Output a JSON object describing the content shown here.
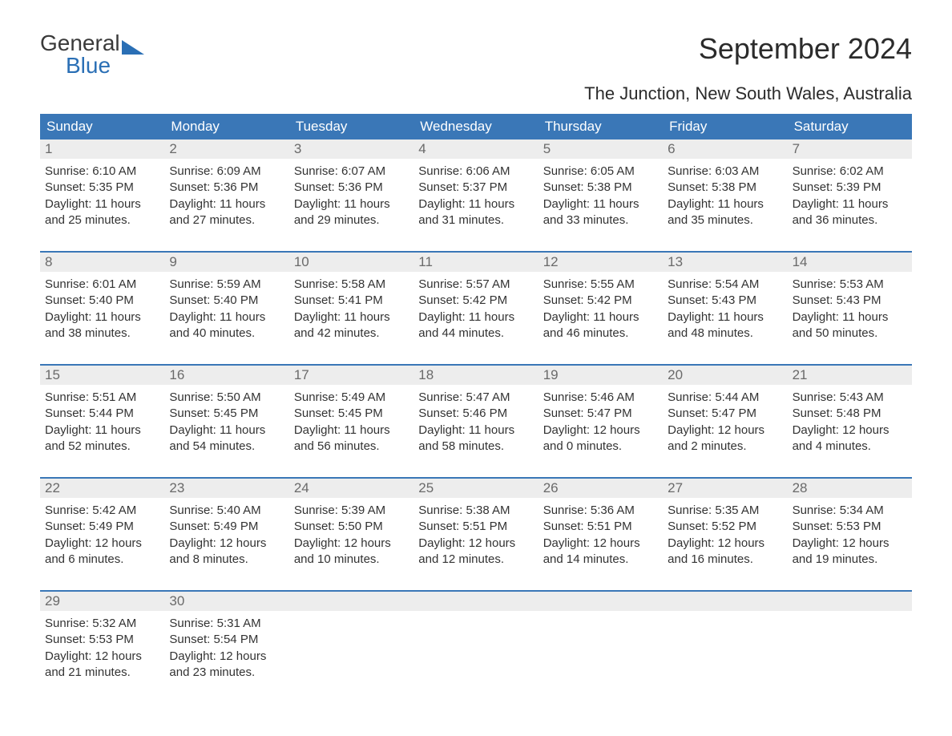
{
  "logo": {
    "line1": "General",
    "line2": "Blue"
  },
  "title": "September 2024",
  "location": "The Junction, New South Wales, Australia",
  "colors": {
    "header_bg": "#3a77b7",
    "header_text": "#ffffff",
    "daynum_bg": "#ededed",
    "daynum_text": "#6a6a6a",
    "body_text": "#333333",
    "accent": "#2a6fb5",
    "page_bg": "#ffffff"
  },
  "weekdays": [
    "Sunday",
    "Monday",
    "Tuesday",
    "Wednesday",
    "Thursday",
    "Friday",
    "Saturday"
  ],
  "weeks": [
    [
      {
        "n": "1",
        "sr": "Sunrise: 6:10 AM",
        "ss": "Sunset: 5:35 PM",
        "d1": "Daylight: 11 hours",
        "d2": "and 25 minutes."
      },
      {
        "n": "2",
        "sr": "Sunrise: 6:09 AM",
        "ss": "Sunset: 5:36 PM",
        "d1": "Daylight: 11 hours",
        "d2": "and 27 minutes."
      },
      {
        "n": "3",
        "sr": "Sunrise: 6:07 AM",
        "ss": "Sunset: 5:36 PM",
        "d1": "Daylight: 11 hours",
        "d2": "and 29 minutes."
      },
      {
        "n": "4",
        "sr": "Sunrise: 6:06 AM",
        "ss": "Sunset: 5:37 PM",
        "d1": "Daylight: 11 hours",
        "d2": "and 31 minutes."
      },
      {
        "n": "5",
        "sr": "Sunrise: 6:05 AM",
        "ss": "Sunset: 5:38 PM",
        "d1": "Daylight: 11 hours",
        "d2": "and 33 minutes."
      },
      {
        "n": "6",
        "sr": "Sunrise: 6:03 AM",
        "ss": "Sunset: 5:38 PM",
        "d1": "Daylight: 11 hours",
        "d2": "and 35 minutes."
      },
      {
        "n": "7",
        "sr": "Sunrise: 6:02 AM",
        "ss": "Sunset: 5:39 PM",
        "d1": "Daylight: 11 hours",
        "d2": "and 36 minutes."
      }
    ],
    [
      {
        "n": "8",
        "sr": "Sunrise: 6:01 AM",
        "ss": "Sunset: 5:40 PM",
        "d1": "Daylight: 11 hours",
        "d2": "and 38 minutes."
      },
      {
        "n": "9",
        "sr": "Sunrise: 5:59 AM",
        "ss": "Sunset: 5:40 PM",
        "d1": "Daylight: 11 hours",
        "d2": "and 40 minutes."
      },
      {
        "n": "10",
        "sr": "Sunrise: 5:58 AM",
        "ss": "Sunset: 5:41 PM",
        "d1": "Daylight: 11 hours",
        "d2": "and 42 minutes."
      },
      {
        "n": "11",
        "sr": "Sunrise: 5:57 AM",
        "ss": "Sunset: 5:42 PM",
        "d1": "Daylight: 11 hours",
        "d2": "and 44 minutes."
      },
      {
        "n": "12",
        "sr": "Sunrise: 5:55 AM",
        "ss": "Sunset: 5:42 PM",
        "d1": "Daylight: 11 hours",
        "d2": "and 46 minutes."
      },
      {
        "n": "13",
        "sr": "Sunrise: 5:54 AM",
        "ss": "Sunset: 5:43 PM",
        "d1": "Daylight: 11 hours",
        "d2": "and 48 minutes."
      },
      {
        "n": "14",
        "sr": "Sunrise: 5:53 AM",
        "ss": "Sunset: 5:43 PM",
        "d1": "Daylight: 11 hours",
        "d2": "and 50 minutes."
      }
    ],
    [
      {
        "n": "15",
        "sr": "Sunrise: 5:51 AM",
        "ss": "Sunset: 5:44 PM",
        "d1": "Daylight: 11 hours",
        "d2": "and 52 minutes."
      },
      {
        "n": "16",
        "sr": "Sunrise: 5:50 AM",
        "ss": "Sunset: 5:45 PM",
        "d1": "Daylight: 11 hours",
        "d2": "and 54 minutes."
      },
      {
        "n": "17",
        "sr": "Sunrise: 5:49 AM",
        "ss": "Sunset: 5:45 PM",
        "d1": "Daylight: 11 hours",
        "d2": "and 56 minutes."
      },
      {
        "n": "18",
        "sr": "Sunrise: 5:47 AM",
        "ss": "Sunset: 5:46 PM",
        "d1": "Daylight: 11 hours",
        "d2": "and 58 minutes."
      },
      {
        "n": "19",
        "sr": "Sunrise: 5:46 AM",
        "ss": "Sunset: 5:47 PM",
        "d1": "Daylight: 12 hours",
        "d2": "and 0 minutes."
      },
      {
        "n": "20",
        "sr": "Sunrise: 5:44 AM",
        "ss": "Sunset: 5:47 PM",
        "d1": "Daylight: 12 hours",
        "d2": "and 2 minutes."
      },
      {
        "n": "21",
        "sr": "Sunrise: 5:43 AM",
        "ss": "Sunset: 5:48 PM",
        "d1": "Daylight: 12 hours",
        "d2": "and 4 minutes."
      }
    ],
    [
      {
        "n": "22",
        "sr": "Sunrise: 5:42 AM",
        "ss": "Sunset: 5:49 PM",
        "d1": "Daylight: 12 hours",
        "d2": "and 6 minutes."
      },
      {
        "n": "23",
        "sr": "Sunrise: 5:40 AM",
        "ss": "Sunset: 5:49 PM",
        "d1": "Daylight: 12 hours",
        "d2": "and 8 minutes."
      },
      {
        "n": "24",
        "sr": "Sunrise: 5:39 AM",
        "ss": "Sunset: 5:50 PM",
        "d1": "Daylight: 12 hours",
        "d2": "and 10 minutes."
      },
      {
        "n": "25",
        "sr": "Sunrise: 5:38 AM",
        "ss": "Sunset: 5:51 PM",
        "d1": "Daylight: 12 hours",
        "d2": "and 12 minutes."
      },
      {
        "n": "26",
        "sr": "Sunrise: 5:36 AM",
        "ss": "Sunset: 5:51 PM",
        "d1": "Daylight: 12 hours",
        "d2": "and 14 minutes."
      },
      {
        "n": "27",
        "sr": "Sunrise: 5:35 AM",
        "ss": "Sunset: 5:52 PM",
        "d1": "Daylight: 12 hours",
        "d2": "and 16 minutes."
      },
      {
        "n": "28",
        "sr": "Sunrise: 5:34 AM",
        "ss": "Sunset: 5:53 PM",
        "d1": "Daylight: 12 hours",
        "d2": "and 19 minutes."
      }
    ],
    [
      {
        "n": "29",
        "sr": "Sunrise: 5:32 AM",
        "ss": "Sunset: 5:53 PM",
        "d1": "Daylight: 12 hours",
        "d2": "and 21 minutes."
      },
      {
        "n": "30",
        "sr": "Sunrise: 5:31 AM",
        "ss": "Sunset: 5:54 PM",
        "d1": "Daylight: 12 hours",
        "d2": "and 23 minutes."
      },
      null,
      null,
      null,
      null,
      null
    ]
  ]
}
